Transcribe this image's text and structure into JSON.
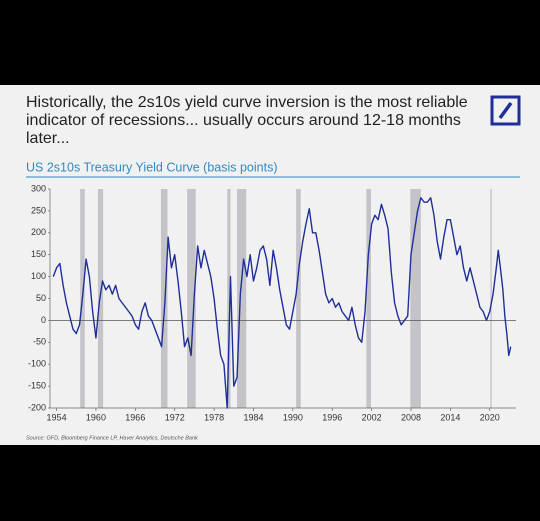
{
  "chart_data": {
    "type": "line",
    "title_lines": [
      "Historically, the 2s10s yield curve inversion is the most reliable",
      "indicator of recessions... usually occurs around 12-18 months",
      "later..."
    ],
    "subtitle": "US 2s10s Treasury Yield Curve (basis points)",
    "source": "Source: GFD, Bloomberg Finance LP, Haver Analytics, Deutsche Bank",
    "xlim": [
      1953,
      2024
    ],
    "ylim": [
      -200,
      300
    ],
    "xticks": [
      1954,
      1960,
      1966,
      1972,
      1978,
      1984,
      1990,
      1996,
      2002,
      2008,
      2014,
      2020
    ],
    "yticks": [
      -200,
      -150,
      -100,
      -50,
      0,
      50,
      100,
      150,
      200,
      250,
      300
    ],
    "recessions": [
      [
        1957.6,
        1958.3
      ],
      [
        1960.3,
        1961.1
      ],
      [
        1969.9,
        1970.9
      ],
      [
        1973.9,
        1975.2
      ],
      [
        1980.0,
        1980.5
      ],
      [
        1981.5,
        1982.9
      ],
      [
        1990.5,
        1991.2
      ],
      [
        2001.2,
        2001.9
      ],
      [
        2007.9,
        2009.5
      ],
      [
        2020.1,
        2020.3
      ]
    ],
    "recession_color": "#c4c4c8",
    "series": [
      {
        "color": "#1f2f9a",
        "x": [
          1953.5,
          1954,
          1954.5,
          1955,
          1955.5,
          1956,
          1956.5,
          1957,
          1957.5,
          1958,
          1958.5,
          1959,
          1959.5,
          1960,
          1960.5,
          1961,
          1961.5,
          1962,
          1962.5,
          1963,
          1963.5,
          1964,
          1964.5,
          1965,
          1965.5,
          1966,
          1966.5,
          1967,
          1967.5,
          1968,
          1968.5,
          1969,
          1969.5,
          1970,
          1970.5,
          1971,
          1971.5,
          1972,
          1972.5,
          1973,
          1973.5,
          1974,
          1974.5,
          1975,
          1975.5,
          1976,
          1976.5,
          1977,
          1977.5,
          1978,
          1978.5,
          1979,
          1979.5,
          1980,
          1980.5,
          1981,
          1981.5,
          1982,
          1982.5,
          1983,
          1983.5,
          1984,
          1984.5,
          1985,
          1985.5,
          1986,
          1986.5,
          1987,
          1987.5,
          1988,
          1988.5,
          1989,
          1989.5,
          1990,
          1990.5,
          1991,
          1991.5,
          1992,
          1992.5,
          1993,
          1993.5,
          1994,
          1994.5,
          1995,
          1995.5,
          1996,
          1996.5,
          1997,
          1997.5,
          1998,
          1998.5,
          1999,
          1999.5,
          2000,
          2000.5,
          2001,
          2001.5,
          2002,
          2002.5,
          2003,
          2003.5,
          2004,
          2004.5,
          2005,
          2005.5,
          2006,
          2006.5,
          2007,
          2007.5,
          2008,
          2008.5,
          2009,
          2009.5,
          2010,
          2010.5,
          2011,
          2011.5,
          2012,
          2012.5,
          2013,
          2013.5,
          2014,
          2014.5,
          2015,
          2015.5,
          2016,
          2016.5,
          2017,
          2017.5,
          2018,
          2018.5,
          2019,
          2019.5,
          2020,
          2020.5,
          2021,
          2021.3,
          2021.7,
          2022,
          2022.3,
          2022.6,
          2022.9,
          2023.2
        ],
        "values": [
          100,
          120,
          130,
          80,
          40,
          10,
          -20,
          -30,
          -10,
          60,
          140,
          100,
          20,
          -40,
          40,
          90,
          70,
          80,
          60,
          80,
          50,
          40,
          30,
          20,
          10,
          -10,
          -20,
          20,
          40,
          10,
          0,
          -20,
          -40,
          -60,
          40,
          190,
          120,
          150,
          90,
          20,
          -60,
          -40,
          -80,
          60,
          170,
          120,
          160,
          130,
          100,
          50,
          -20,
          -80,
          -100,
          -200,
          100,
          -150,
          -130,
          60,
          140,
          100,
          150,
          90,
          120,
          160,
          170,
          140,
          80,
          160,
          120,
          70,
          30,
          -10,
          -20,
          20,
          60,
          130,
          180,
          220,
          255,
          200,
          200,
          160,
          110,
          60,
          40,
          50,
          30,
          40,
          20,
          10,
          0,
          30,
          -10,
          -40,
          -50,
          20,
          150,
          220,
          240,
          230,
          265,
          240,
          210,
          110,
          40,
          10,
          -10,
          0,
          10,
          150,
          200,
          250,
          280,
          270,
          270,
          280,
          240,
          180,
          140,
          190,
          230,
          230,
          190,
          150,
          170,
          120,
          90,
          120,
          90,
          60,
          30,
          20,
          0,
          20,
          60,
          120,
          160,
          110,
          70,
          10,
          -30,
          -80,
          -60
        ]
      }
    ]
  }
}
